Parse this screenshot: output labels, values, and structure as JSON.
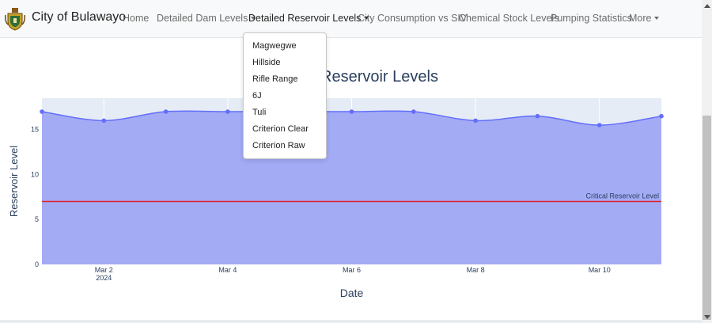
{
  "navbar": {
    "brand": "City of Bulawayo",
    "items": [
      {
        "label": "Home",
        "dropdown": false,
        "active": false
      },
      {
        "label": "Detailed Dam Levels",
        "dropdown": true,
        "active": false
      },
      {
        "label": "Detailed Reservoir Levels",
        "dropdown": true,
        "active": true
      },
      {
        "label": "City Consumption vs SIV",
        "dropdown": false,
        "active": false
      },
      {
        "label": "Chemical Stock Levels",
        "dropdown": false,
        "active": false
      },
      {
        "label": "Pumping Statistics",
        "dropdown": false,
        "active": false
      },
      {
        "label": "More",
        "dropdown": true,
        "active": false
      }
    ]
  },
  "dropdown": {
    "items": [
      "Magwegwe",
      "Hillside",
      "Rifle Range",
      "6J",
      "Tuli",
      "Criterion Clear",
      "Criterion Raw"
    ]
  },
  "colors": {
    "fill": "#a3abf5",
    "line": "#636efa",
    "critical": "#e0202a",
    "plot_bg": "#e5ecf6",
    "axis_text": "#2a3f5f"
  },
  "chart_data": {
    "type": "area",
    "title": "Reservoir Levels",
    "title_visible_fragment": "Reservoir Levels",
    "xlabel": "Date",
    "ylabel": "Reservoir Level",
    "x": [
      "2024-03-01",
      "2024-03-02",
      "2024-03-03",
      "2024-03-04",
      "2024-03-05",
      "2024-03-06",
      "2024-03-07",
      "2024-03-08",
      "2024-03-09",
      "2024-03-10",
      "2024-03-11"
    ],
    "y": [
      17.0,
      16.0,
      17.0,
      17.0,
      17.0,
      17.0,
      17.0,
      16.0,
      16.5,
      15.5,
      16.5
    ],
    "xlim": [
      "2024-03-01",
      "2024-03-11"
    ],
    "ylim": [
      0,
      18.5
    ],
    "x_ticks": [
      {
        "value": "2024-03-02",
        "label": "Mar 2",
        "sublabel": "2024"
      },
      {
        "value": "2024-03-04",
        "label": "Mar 4",
        "sublabel": ""
      },
      {
        "value": "2024-03-06",
        "label": "Mar 6",
        "sublabel": ""
      },
      {
        "value": "2024-03-08",
        "label": "Mar 8",
        "sublabel": ""
      },
      {
        "value": "2024-03-10",
        "label": "Mar 10",
        "sublabel": ""
      }
    ],
    "y_ticks": [
      0,
      5,
      10,
      15
    ],
    "critical_level": 7,
    "critical_label": "Critical Reservoir Level",
    "grid": true,
    "line_shape": "spline"
  }
}
